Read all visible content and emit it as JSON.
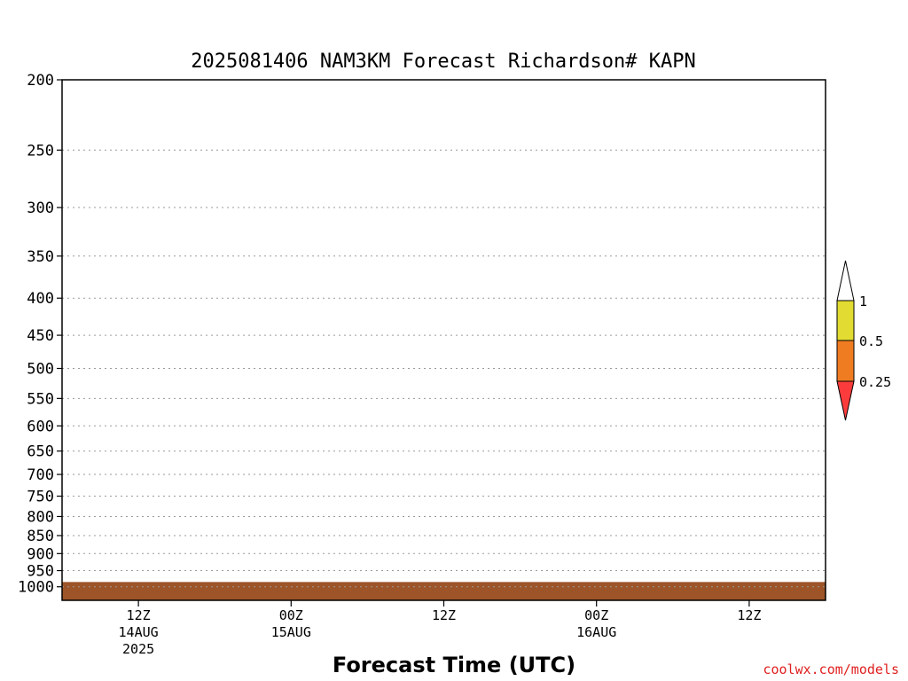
{
  "chart_data": {
    "type": "heatmap",
    "title": "2025081406 NAM3KM Forecast Richardson# KAPN",
    "xlabel": "Forecast Time (UTC)",
    "ylabel": "",
    "credit": "coolwx.com/models",
    "y_axis": {
      "scale": "log",
      "inverted": true,
      "range": [
        1000,
        200
      ],
      "ticks": [
        200,
        250,
        300,
        350,
        400,
        450,
        500,
        550,
        600,
        650,
        700,
        750,
        800,
        850,
        900,
        950,
        1000
      ],
      "tick_labels": [
        "200",
        "250",
        "300",
        "350",
        "400",
        "450",
        "500",
        "550",
        "600",
        "650",
        "700",
        "750",
        "800",
        "850",
        "900",
        "950",
        "1000"
      ]
    },
    "x_axis": {
      "range_hours": [
        0,
        60
      ],
      "ticks": [
        {
          "hour": 6,
          "label": "12Z",
          "date": "14AUG",
          "year": "2025"
        },
        {
          "hour": 18,
          "label": "00Z",
          "date": "15AUG",
          "year": ""
        },
        {
          "hour": 30,
          "label": "12Z",
          "date": "",
          "year": ""
        },
        {
          "hour": 42,
          "label": "00Z",
          "date": "16AUG",
          "year": ""
        },
        {
          "hour": 54,
          "label": "12Z",
          "date": "",
          "year": ""
        }
      ]
    },
    "grid": true,
    "colorbar": {
      "labels": [
        "1",
        "0.5",
        "0.25"
      ],
      "colors": {
        "below_0_25": "#fc3c3c",
        "0_25_to_0_5": "#f07c22",
        "0_5_to_1": "#e2dc32",
        "above_1": "#ffffff"
      }
    },
    "ground_color": "#9c5428",
    "ground_pressure": 985,
    "cells": [
      [
        0,
        0,
        0,
        0,
        0,
        0,
        0,
        0,
        0,
        0,
        0,
        0,
        0,
        0,
        0,
        0,
        0,
        0,
        0,
        0,
        0,
        0,
        0,
        0,
        0,
        0,
        0,
        0,
        0,
        0,
        0,
        0,
        0,
        0,
        0,
        0,
        0,
        0,
        0,
        0,
        0,
        0,
        0,
        0,
        0,
        0,
        0,
        0,
        0,
        0,
        0,
        0,
        0,
        0,
        0,
        0,
        0,
        0,
        0,
        0,
        0
      ],
      [
        0,
        0,
        0,
        0,
        0,
        0,
        0,
        0,
        0,
        0,
        0,
        0,
        0,
        0,
        0,
        0,
        0,
        0,
        0,
        0,
        0,
        0,
        0,
        0,
        0,
        0,
        0,
        0,
        0,
        0,
        0,
        0,
        0,
        0,
        0,
        0,
        0,
        0,
        0,
        0,
        0,
        0,
        0,
        0,
        0,
        0,
        0,
        0,
        0,
        0,
        0,
        0,
        0,
        0,
        0,
        0,
        0,
        0,
        0,
        0,
        0
      ],
      [
        0,
        0,
        0,
        0,
        0,
        0,
        0,
        0,
        0,
        0,
        0,
        0,
        0,
        0,
        0,
        0,
        0,
        0,
        0,
        0,
        0,
        0,
        0,
        0,
        0,
        0,
        0,
        0,
        0,
        0,
        0,
        0,
        0,
        0,
        0,
        0,
        0,
        0,
        0,
        0,
        0,
        0,
        0,
        0,
        0,
        0,
        0,
        0,
        0,
        0,
        0,
        0,
        0,
        0,
        0,
        0,
        0,
        0,
        0,
        0,
        0
      ]
    ]
  }
}
